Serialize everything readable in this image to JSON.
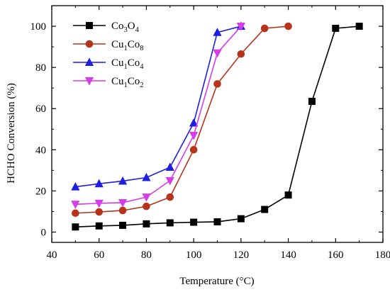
{
  "chart_data": {
    "type": "line",
    "xlabel": "Temperature (°C)",
    "ylabel": "HCHO Conversion (%)",
    "xlim": [
      40,
      180
    ],
    "ylim": [
      -5,
      110
    ],
    "xticks": [
      40,
      60,
      80,
      100,
      120,
      140,
      160,
      180
    ],
    "yticks": [
      0,
      20,
      40,
      60,
      80,
      100
    ],
    "grid": false,
    "legend_position": "top-left",
    "series": [
      {
        "name_parts": [
          [
            "Co",
            "normal"
          ],
          [
            "3",
            "sub"
          ],
          [
            "O",
            "normal"
          ],
          [
            "4",
            "sub"
          ]
        ],
        "color": "#000000",
        "marker": "square",
        "x": [
          50,
          60,
          70,
          80,
          90,
          100,
          110,
          120,
          130,
          140,
          150,
          160,
          170
        ],
        "y": [
          2.5,
          3.0,
          3.3,
          4.0,
          4.5,
          4.8,
          5.0,
          6.5,
          11.0,
          18.0,
          63.5,
          99.0,
          100.0
        ]
      },
      {
        "name_parts": [
          [
            "Cu",
            "normal"
          ],
          [
            "1",
            "sub"
          ],
          [
            "Co",
            "normal"
          ],
          [
            "8",
            "sub"
          ]
        ],
        "color": "#b5341a",
        "marker": "circle",
        "x": [
          50,
          60,
          70,
          80,
          90,
          100,
          110,
          120,
          130,
          140
        ],
        "y": [
          9.2,
          9.8,
          10.5,
          12.5,
          17.0,
          40.0,
          72.0,
          86.5,
          99.0,
          100.0
        ]
      },
      {
        "name_parts": [
          [
            "Cu",
            "normal"
          ],
          [
            "1",
            "sub"
          ],
          [
            "Co",
            "normal"
          ],
          [
            "4",
            "sub"
          ]
        ],
        "color": "#1f1fe0",
        "marker": "triangle-up",
        "x": [
          50,
          60,
          70,
          80,
          90,
          100,
          110,
          120
        ],
        "y": [
          22.0,
          23.5,
          24.8,
          26.5,
          31.5,
          53.0,
          97.0,
          100.0
        ]
      },
      {
        "name_parts": [
          [
            "Cu",
            "normal"
          ],
          [
            "1",
            "sub"
          ],
          [
            "Co",
            "normal"
          ],
          [
            "2",
            "sub"
          ]
        ],
        "color": "#d63ce8",
        "marker": "triangle-down",
        "x": [
          50,
          60,
          70,
          80,
          90,
          100,
          110,
          120
        ],
        "y": [
          13.5,
          14.0,
          14.3,
          17.0,
          25.0,
          47.0,
          87.0,
          100.0
        ]
      }
    ]
  }
}
